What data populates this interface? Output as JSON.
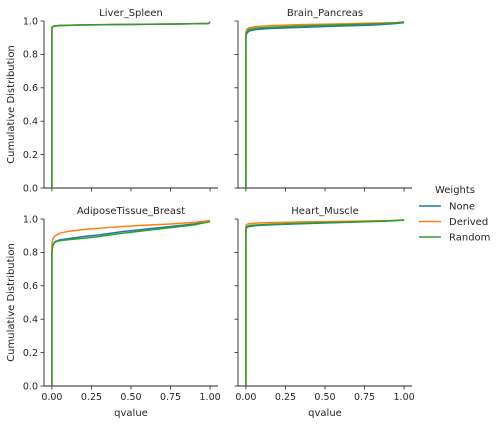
{
  "chart_data": {
    "type": "line",
    "xlabel": "qvalue",
    "ylabel": "Cumulative Distribution",
    "xlim": [
      -0.05,
      1.05
    ],
    "ylim": [
      0,
      1.0
    ],
    "xticks": [
      0.0,
      0.25,
      0.5,
      0.75,
      1.0
    ],
    "xtick_labels": [
      "0.00",
      "0.25",
      "0.50",
      "0.75",
      "1.00"
    ],
    "yticks": [
      0.0,
      0.2,
      0.4,
      0.6,
      0.8,
      1.0
    ],
    "ytick_labels": [
      "0.0",
      "0.2",
      "0.4",
      "0.6",
      "0.8",
      "1.0"
    ],
    "grid": false,
    "legend": {
      "title": "Weights",
      "placement": "center-right",
      "entries": [
        {
          "label": "None",
          "color": "#1f77b4"
        },
        {
          "label": "Derived",
          "color": "#ff7f0e"
        },
        {
          "label": "Random",
          "color": "#2ca02c"
        }
      ]
    },
    "panels": [
      {
        "title": "Liver_Spleen",
        "series": [
          {
            "name": "None",
            "color": "#1f77b4",
            "x": [
              0,
              0.0,
              0.01,
              0.05,
              0.2,
              0.5,
              0.8,
              0.99,
              1.0
            ],
            "y": [
              0,
              0.962,
              0.968,
              0.972,
              0.976,
              0.979,
              0.982,
              0.985,
              0.995
            ]
          },
          {
            "name": "Derived",
            "color": "#ff7f0e",
            "x": [
              0,
              0.0,
              0.01,
              0.05,
              0.2,
              0.5,
              0.8,
              0.99,
              1.0
            ],
            "y": [
              0,
              0.964,
              0.97,
              0.974,
              0.977,
              0.98,
              0.983,
              0.986,
              0.996
            ]
          },
          {
            "name": "Random",
            "color": "#2ca02c",
            "x": [
              0,
              0.0,
              0.01,
              0.05,
              0.2,
              0.5,
              0.8,
              0.99,
              1.0
            ],
            "y": [
              0,
              0.962,
              0.969,
              0.973,
              0.977,
              0.98,
              0.982,
              0.985,
              0.995
            ]
          }
        ]
      },
      {
        "title": "Brain_Pancreas",
        "series": [
          {
            "name": "None",
            "color": "#1f77b4",
            "x": [
              0,
              0.0,
              0.005,
              0.02,
              0.06,
              0.15,
              0.35,
              0.6,
              0.8,
              0.95,
              1.0
            ],
            "y": [
              0,
              0.9,
              0.925,
              0.94,
              0.948,
              0.955,
              0.962,
              0.97,
              0.975,
              0.985,
              0.99
            ]
          },
          {
            "name": "Derived",
            "color": "#ff7f0e",
            "x": [
              0,
              0.0,
              0.005,
              0.02,
              0.06,
              0.15,
              0.35,
              0.6,
              0.8,
              0.95,
              1.0
            ],
            "y": [
              0,
              0.93,
              0.95,
              0.96,
              0.966,
              0.972,
              0.978,
              0.983,
              0.987,
              0.99,
              0.995
            ]
          },
          {
            "name": "Random",
            "color": "#2ca02c",
            "x": [
              0,
              0.0,
              0.005,
              0.02,
              0.06,
              0.15,
              0.35,
              0.6,
              0.8,
              0.95,
              1.0
            ],
            "y": [
              0,
              0.91,
              0.935,
              0.95,
              0.957,
              0.962,
              0.97,
              0.977,
              0.982,
              0.988,
              0.993
            ]
          }
        ]
      },
      {
        "title": "AdiposeTissue_Breast",
        "series": [
          {
            "name": "None",
            "color": "#1f77b4",
            "x": [
              0,
              0.0,
              0.005,
              0.02,
              0.05,
              0.1,
              0.2,
              0.3,
              0.45,
              0.6,
              0.75,
              0.9,
              1.0
            ],
            "y": [
              0,
              0.8,
              0.84,
              0.865,
              0.875,
              0.882,
              0.895,
              0.905,
              0.925,
              0.94,
              0.955,
              0.97,
              0.985
            ]
          },
          {
            "name": "Derived",
            "color": "#ff7f0e",
            "x": [
              0,
              0.0,
              0.005,
              0.02,
              0.05,
              0.1,
              0.2,
              0.3,
              0.45,
              0.6,
              0.75,
              0.9,
              1.0
            ],
            "y": [
              0,
              0.84,
              0.88,
              0.9,
              0.915,
              0.925,
              0.937,
              0.945,
              0.955,
              0.963,
              0.97,
              0.98,
              0.99
            ]
          },
          {
            "name": "Random",
            "color": "#2ca02c",
            "x": [
              0,
              0.0,
              0.005,
              0.02,
              0.05,
              0.1,
              0.2,
              0.3,
              0.45,
              0.6,
              0.75,
              0.9,
              1.0
            ],
            "y": [
              0,
              0.8,
              0.845,
              0.862,
              0.87,
              0.876,
              0.885,
              0.895,
              0.915,
              0.932,
              0.948,
              0.965,
              0.985
            ]
          }
        ]
      },
      {
        "title": "Heart_Muscle",
        "series": [
          {
            "name": "None",
            "color": "#1f77b4",
            "x": [
              0,
              0.0,
              0.005,
              0.02,
              0.06,
              0.15,
              0.3,
              0.5,
              0.7,
              0.9,
              1.0
            ],
            "y": [
              0,
              0.93,
              0.95,
              0.955,
              0.96,
              0.965,
              0.97,
              0.976,
              0.982,
              0.988,
              0.993
            ]
          },
          {
            "name": "Derived",
            "color": "#ff7f0e",
            "x": [
              0,
              0.0,
              0.005,
              0.02,
              0.06,
              0.15,
              0.3,
              0.5,
              0.7,
              0.9,
              1.0
            ],
            "y": [
              0,
              0.955,
              0.967,
              0.972,
              0.975,
              0.978,
              0.981,
              0.984,
              0.987,
              0.99,
              0.995
            ]
          },
          {
            "name": "Random",
            "color": "#2ca02c",
            "x": [
              0,
              0.0,
              0.005,
              0.02,
              0.06,
              0.15,
              0.3,
              0.5,
              0.7,
              0.9,
              1.0
            ],
            "y": [
              0,
              0.94,
              0.955,
              0.96,
              0.964,
              0.968,
              0.973,
              0.978,
              0.983,
              0.989,
              0.993
            ]
          }
        ]
      }
    ]
  }
}
